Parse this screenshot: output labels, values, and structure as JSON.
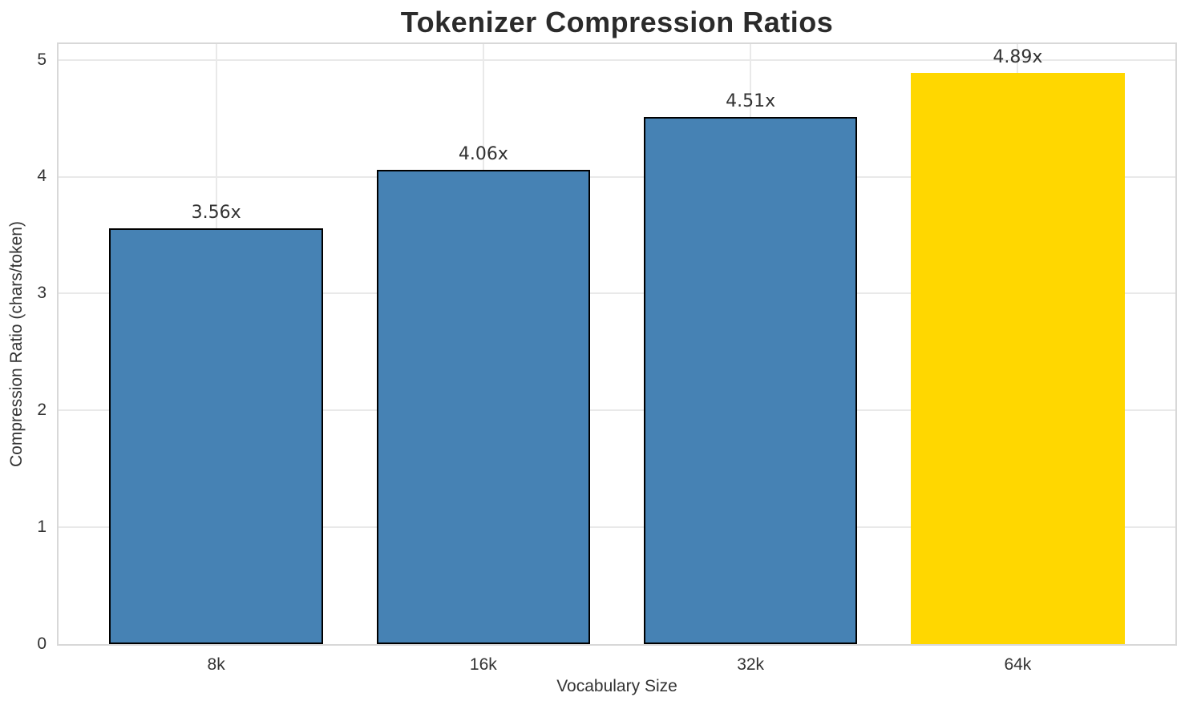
{
  "chart_data": {
    "type": "bar",
    "title": "Tokenizer Compression Ratios",
    "xlabel": "Vocabulary Size",
    "ylabel": "Compression Ratio (chars/token)",
    "categories": [
      "8k",
      "16k",
      "32k",
      "64k"
    ],
    "values": [
      3.56,
      4.06,
      4.51,
      4.89
    ],
    "value_labels": [
      "3.56x",
      "4.06x",
      "4.51x",
      "4.89x"
    ],
    "bar_colors": [
      "#4682b4",
      "#4682b4",
      "#4682b4",
      "#ffd700"
    ],
    "bar_edge_colors": [
      "#000000",
      "#000000",
      "#000000",
      null
    ],
    "bar_width": 0.8,
    "yticks": [
      0,
      1,
      2,
      3,
      4,
      5
    ],
    "ylim": [
      0,
      5.1345
    ],
    "xlim": [
      -0.59,
      3.59
    ],
    "grid": true,
    "legend": null
  }
}
